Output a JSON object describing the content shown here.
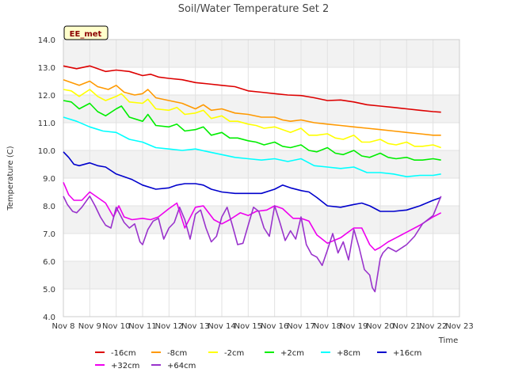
{
  "chart_data": {
    "type": "line",
    "title": "Soil/Water Temperature Set 2",
    "badge": "EE_met",
    "xlabel": "Time",
    "ylabel": "Temperature (C)",
    "ylim": [
      4.0,
      14.0
    ],
    "xlim": [
      8,
      23
    ],
    "x_unit": "day of November",
    "yticks": [
      "4.0",
      "5.0",
      "6.0",
      "7.0",
      "8.0",
      "9.0",
      "10.0",
      "11.0",
      "12.0",
      "13.0",
      "14.0"
    ],
    "xticks": [
      "Nov 8",
      "Nov 9",
      "Nov 10",
      "Nov 11",
      "Nov 12",
      "Nov 13",
      "Nov 14",
      "Nov 15",
      "Nov 16",
      "Nov 17",
      "Nov 18",
      "Nov 19",
      "Nov 20",
      "Nov 21",
      "Nov 22",
      "Nov 23"
    ],
    "grid": true,
    "legend_position": "bottom",
    "series": [
      {
        "name": "-16cm",
        "color": "#dd0000",
        "x": [
          8.0,
          8.5,
          9.0,
          9.3,
          9.6,
          10.0,
          10.5,
          11.0,
          11.3,
          11.6,
          12.0,
          12.5,
          13.0,
          13.5,
          14.0,
          14.5,
          15.0,
          15.5,
          16.0,
          16.5,
          17.0,
          17.5,
          18.0,
          18.5,
          19.0,
          19.5,
          20.0,
          20.5,
          21.0,
          21.5,
          22.0,
          22.3
        ],
        "y": [
          13.05,
          12.95,
          13.05,
          12.95,
          12.85,
          12.9,
          12.85,
          12.7,
          12.75,
          12.65,
          12.6,
          12.55,
          12.45,
          12.4,
          12.35,
          12.3,
          12.15,
          12.1,
          12.05,
          12.0,
          11.98,
          11.9,
          11.8,
          11.82,
          11.75,
          11.65,
          11.6,
          11.55,
          11.5,
          11.45,
          11.4,
          11.38
        ]
      },
      {
        "name": "-8cm",
        "color": "#ff9900",
        "x": [
          8.0,
          8.3,
          8.6,
          9.0,
          9.3,
          9.7,
          10.0,
          10.3,
          10.7,
          11.0,
          11.2,
          11.5,
          12.0,
          12.5,
          13.0,
          13.3,
          13.6,
          14.0,
          14.5,
          15.0,
          15.5,
          16.0,
          16.3,
          16.6,
          17.0,
          17.5,
          18.0,
          18.5,
          19.0,
          19.5,
          20.0,
          20.5,
          21.0,
          21.5,
          22.0,
          22.3
        ],
        "y": [
          12.55,
          12.45,
          12.35,
          12.5,
          12.3,
          12.2,
          12.35,
          12.1,
          12.0,
          12.05,
          12.2,
          11.9,
          11.8,
          11.7,
          11.5,
          11.65,
          11.45,
          11.5,
          11.35,
          11.3,
          11.2,
          11.2,
          11.1,
          11.05,
          11.1,
          11.0,
          10.95,
          10.9,
          10.85,
          10.8,
          10.75,
          10.7,
          10.65,
          10.6,
          10.55,
          10.55
        ]
      },
      {
        "name": "-2cm",
        "color": "#ffff00",
        "x": [
          8.0,
          8.3,
          8.6,
          9.0,
          9.3,
          9.6,
          10.0,
          10.2,
          10.5,
          11.0,
          11.2,
          11.5,
          12.0,
          12.3,
          12.6,
          13.0,
          13.3,
          13.6,
          14.0,
          14.3,
          14.6,
          15.0,
          15.3,
          15.6,
          16.0,
          16.3,
          16.6,
          17.0,
          17.3,
          17.6,
          18.0,
          18.3,
          18.6,
          19.0,
          19.3,
          19.6,
          20.0,
          20.3,
          20.6,
          21.0,
          21.3,
          21.6,
          22.0,
          22.3
        ],
        "y": [
          12.2,
          12.15,
          11.95,
          12.2,
          11.95,
          11.8,
          11.95,
          12.05,
          11.75,
          11.7,
          11.85,
          11.5,
          11.45,
          11.55,
          11.3,
          11.35,
          11.45,
          11.15,
          11.25,
          11.05,
          11.05,
          10.95,
          10.9,
          10.8,
          10.85,
          10.75,
          10.65,
          10.8,
          10.55,
          10.55,
          10.6,
          10.45,
          10.4,
          10.55,
          10.3,
          10.3,
          10.4,
          10.25,
          10.2,
          10.3,
          10.15,
          10.15,
          10.2,
          10.1
        ]
      },
      {
        "name": "+2cm",
        "color": "#00ee00",
        "x": [
          8.0,
          8.3,
          8.6,
          9.0,
          9.3,
          9.6,
          10.0,
          10.2,
          10.5,
          11.0,
          11.2,
          11.5,
          12.0,
          12.3,
          12.6,
          13.0,
          13.3,
          13.6,
          14.0,
          14.3,
          14.6,
          15.0,
          15.3,
          15.6,
          16.0,
          16.3,
          16.6,
          17.0,
          17.3,
          17.6,
          18.0,
          18.3,
          18.6,
          19.0,
          19.3,
          19.6,
          20.0,
          20.3,
          20.6,
          21.0,
          21.3,
          21.6,
          22.0,
          22.3
        ],
        "y": [
          11.8,
          11.75,
          11.5,
          11.7,
          11.4,
          11.25,
          11.5,
          11.6,
          11.2,
          11.05,
          11.3,
          10.9,
          10.85,
          10.95,
          10.7,
          10.75,
          10.85,
          10.55,
          10.65,
          10.45,
          10.45,
          10.35,
          10.3,
          10.2,
          10.3,
          10.15,
          10.1,
          10.2,
          10.0,
          9.95,
          10.1,
          9.9,
          9.85,
          10.0,
          9.8,
          9.75,
          9.9,
          9.75,
          9.7,
          9.75,
          9.65,
          9.65,
          9.7,
          9.65
        ]
      },
      {
        "name": "+8cm",
        "color": "#00ffff",
        "x": [
          8.0,
          8.5,
          9.0,
          9.5,
          10.0,
          10.5,
          11.0,
          11.5,
          12.0,
          12.5,
          13.0,
          13.5,
          14.0,
          14.5,
          15.0,
          15.5,
          16.0,
          16.5,
          17.0,
          17.5,
          18.0,
          18.5,
          19.0,
          19.5,
          20.0,
          20.5,
          21.0,
          21.5,
          22.0,
          22.3
        ],
        "y": [
          11.2,
          11.05,
          10.85,
          10.7,
          10.65,
          10.4,
          10.3,
          10.1,
          10.05,
          10.0,
          10.05,
          9.95,
          9.85,
          9.75,
          9.7,
          9.65,
          9.7,
          9.6,
          9.7,
          9.45,
          9.4,
          9.35,
          9.4,
          9.2,
          9.2,
          9.15,
          9.05,
          9.1,
          9.1,
          9.15
        ]
      },
      {
        "name": "+16cm",
        "color": "#0000cc",
        "x": [
          8.0,
          8.2,
          8.4,
          8.6,
          9.0,
          9.3,
          9.6,
          10.0,
          10.3,
          10.6,
          11.0,
          11.5,
          12.0,
          12.3,
          12.6,
          13.0,
          13.3,
          13.6,
          14.0,
          14.5,
          15.0,
          15.5,
          16.0,
          16.3,
          16.6,
          17.0,
          17.3,
          17.6,
          18.0,
          18.5,
          19.0,
          19.3,
          19.6,
          20.0,
          20.5,
          21.0,
          21.5,
          22.0,
          22.3
        ],
        "y": [
          9.95,
          9.75,
          9.5,
          9.45,
          9.55,
          9.45,
          9.4,
          9.15,
          9.05,
          8.95,
          8.75,
          8.6,
          8.65,
          8.75,
          8.8,
          8.8,
          8.75,
          8.6,
          8.5,
          8.45,
          8.45,
          8.45,
          8.6,
          8.75,
          8.65,
          8.55,
          8.5,
          8.3,
          8.0,
          7.95,
          8.05,
          8.1,
          8.0,
          7.8,
          7.8,
          7.85,
          8.0,
          8.2,
          8.3
        ]
      },
      {
        "name": "+32cm",
        "color": "#ee00ee",
        "x": [
          8.0,
          8.2,
          8.4,
          8.7,
          9.0,
          9.3,
          9.6,
          9.9,
          10.1,
          10.3,
          10.6,
          11.0,
          11.3,
          11.6,
          12.0,
          12.3,
          12.6,
          13.0,
          13.3,
          13.7,
          14.0,
          14.3,
          14.7,
          15.0,
          15.3,
          15.7,
          16.0,
          16.3,
          16.7,
          17.0,
          17.3,
          17.6,
          18.0,
          18.5,
          19.0,
          19.3,
          19.6,
          19.8,
          20.0,
          20.3,
          20.6,
          21.0,
          21.5,
          22.0,
          22.3
        ],
        "y": [
          8.85,
          8.4,
          8.2,
          8.2,
          8.5,
          8.3,
          8.1,
          7.6,
          8.0,
          7.6,
          7.5,
          7.55,
          7.5,
          7.6,
          7.9,
          8.1,
          7.2,
          7.95,
          8.0,
          7.5,
          7.35,
          7.5,
          7.75,
          7.65,
          7.8,
          7.85,
          8.0,
          7.9,
          7.55,
          7.55,
          7.45,
          6.95,
          6.65,
          6.85,
          7.2,
          7.2,
          6.6,
          6.4,
          6.5,
          6.7,
          6.85,
          7.05,
          7.3,
          7.6,
          7.75
        ]
      },
      {
        "name": "+64cm",
        "color": "#9933cc",
        "x": [
          8.0,
          8.15,
          8.35,
          8.5,
          8.7,
          9.0,
          9.2,
          9.4,
          9.6,
          9.8,
          10.0,
          10.3,
          10.5,
          10.7,
          10.9,
          11.0,
          11.2,
          11.4,
          11.6,
          11.8,
          12.0,
          12.2,
          12.4,
          12.6,
          12.8,
          13.0,
          13.2,
          13.4,
          13.6,
          13.8,
          14.0,
          14.2,
          14.4,
          14.6,
          14.8,
          15.0,
          15.2,
          15.4,
          15.6,
          15.8,
          16.0,
          16.2,
          16.4,
          16.6,
          16.8,
          17.0,
          17.2,
          17.4,
          17.6,
          17.8,
          18.0,
          18.2,
          18.4,
          18.6,
          18.8,
          19.0,
          19.2,
          19.4,
          19.6,
          19.7,
          19.8,
          20.0,
          20.1,
          20.3,
          20.6,
          21.0,
          21.3,
          21.6,
          22.0,
          22.3
        ],
        "y": [
          8.35,
          8.05,
          7.8,
          7.75,
          7.95,
          8.35,
          8.0,
          7.6,
          7.3,
          7.2,
          7.95,
          7.4,
          7.2,
          7.35,
          6.7,
          6.6,
          7.15,
          7.45,
          7.55,
          6.8,
          7.2,
          7.4,
          7.95,
          7.5,
          6.8,
          7.7,
          7.85,
          7.2,
          6.7,
          6.9,
          7.6,
          7.95,
          7.3,
          6.6,
          6.65,
          7.3,
          7.95,
          7.8,
          7.2,
          6.9,
          8.0,
          7.4,
          6.75,
          7.1,
          6.8,
          7.6,
          6.6,
          6.25,
          6.15,
          5.85,
          6.4,
          7.0,
          6.3,
          6.7,
          6.05,
          7.15,
          6.5,
          5.7,
          5.5,
          5.05,
          4.9,
          6.1,
          6.3,
          6.5,
          6.35,
          6.6,
          6.9,
          7.35,
          7.65,
          8.35
        ]
      }
    ]
  }
}
